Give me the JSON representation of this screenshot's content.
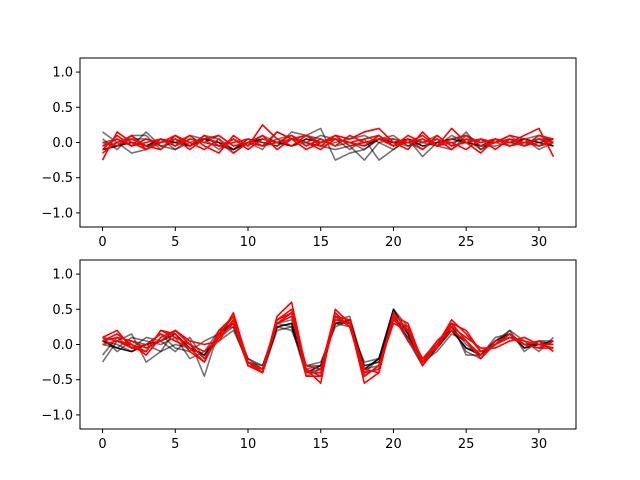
{
  "chart_data": [
    {
      "type": "line",
      "xlim": [
        -1.55,
        32.55
      ],
      "ylim": [
        -1.2,
        1.2
      ],
      "xticks": [
        0,
        5,
        10,
        15,
        20,
        25,
        30
      ],
      "yticks": [
        1.0,
        0.5,
        0.0,
        -0.5,
        -1.0
      ],
      "xtick_labels": [
        "0",
        "5",
        "10",
        "15",
        "20",
        "25",
        "30"
      ],
      "ytick_labels": [
        "1.0",
        "0.5",
        "0.0",
        "−0.5",
        "−1.0"
      ],
      "grid": false,
      "series": [
        {
          "color": "#000000",
          "opacity": 0.55,
          "values": [
            0.15,
            0.0,
            -0.15,
            -0.1,
            0.05,
            -0.1,
            0.0,
            0.05,
            0.0,
            -0.15,
            0.0,
            -0.05,
            0.05,
            0.1,
            0.0,
            -0.05,
            -0.1,
            -0.05,
            -0.25,
            0.0,
            0.05,
            0.0,
            -0.1,
            0.05,
            0.0,
            0.05,
            -0.1,
            0.0,
            -0.05,
            0.05,
            0.1,
            0.0
          ]
        },
        {
          "color": "#000000",
          "opacity": 0.55,
          "values": [
            0.05,
            -0.1,
            0.1,
            0.1,
            -0.1,
            0.05,
            -0.05,
            0.1,
            -0.05,
            -0.1,
            0.05,
            0.0,
            -0.05,
            0.05,
            0.1,
            0.2,
            -0.25,
            -0.15,
            -0.1,
            0.05,
            0.0,
            -0.05,
            0.05,
            -0.05,
            -0.1,
            0.1,
            0.0,
            0.05,
            0.0,
            -0.05,
            0.05,
            0.05
          ]
        },
        {
          "color": "#000000",
          "opacity": 0.55,
          "values": [
            -0.1,
            -0.05,
            0.05,
            0.05,
            -0.05,
            0.0,
            0.1,
            0.05,
            -0.1,
            0.05,
            -0.05,
            0.1,
            0.0,
            -0.05,
            0.0,
            0.1,
            0.05,
            -0.1,
            0.05,
            -0.25,
            -0.1,
            0.05,
            -0.2,
            0.0,
            0.05,
            0.1,
            -0.05,
            -0.05,
            0.0,
            0.05,
            -0.1,
            0.0
          ]
        },
        {
          "color": "#000000",
          "opacity": 0.55,
          "values": [
            0.0,
            0.05,
            -0.05,
            0.15,
            -0.05,
            -0.1,
            0.05,
            0.0,
            0.1,
            -0.05,
            0.0,
            -0.1,
            0.15,
            0.05,
            0.0,
            -0.05,
            0.0,
            0.05,
            0.1,
            0.0,
            -0.1,
            0.05,
            0.0,
            0.1,
            -0.05,
            0.15,
            -0.1,
            0.05,
            -0.05,
            0.0,
            0.05,
            -0.05
          ]
        },
        {
          "color": "#000000",
          "opacity": 0.55,
          "values": [
            -0.05,
            0.0,
            0.1,
            -0.05,
            0.0,
            0.05,
            -0.05,
            0.1,
            0.05,
            -0.1,
            0.05,
            0.0,
            -0.05,
            0.15,
            0.1,
            0.05,
            -0.05,
            0.0,
            -0.1,
            0.05,
            0.1,
            -0.05,
            0.0,
            -0.05,
            0.1,
            0.0,
            0.05,
            0.0,
            0.1,
            -0.05,
            0.0,
            0.05
          ]
        },
        {
          "color": "#000000",
          "opacity": 0.9,
          "values": [
            -0.1,
            -0.05,
            0.0,
            -0.05,
            0.05,
            0.0,
            -0.05,
            0.05,
            0.0,
            -0.1,
            0.0,
            0.05,
            0.0,
            -0.05,
            0.05,
            0.0,
            0.05,
            0.0,
            -0.05,
            0.05,
            0.0,
            0.05,
            -0.05,
            0.0,
            0.05,
            0.0,
            -0.05,
            0.05,
            0.0,
            0.05,
            0.0,
            -0.05
          ]
        },
        {
          "color": "#ff0000",
          "opacity": 1.0,
          "values": [
            -0.25,
            0.15,
            0.0,
            -0.1,
            0.05,
            -0.05,
            0.1,
            -0.05,
            -0.15,
            0.1,
            -0.05,
            0.25,
            0.05,
            -0.05,
            0.1,
            -0.05,
            0.1,
            0.05,
            0.15,
            0.2,
            0.0,
            -0.1,
            0.15,
            -0.05,
            0.2,
            0.0,
            -0.15,
            0.05,
            0.0,
            0.1,
            0.2,
            -0.2
          ]
        },
        {
          "color": "#ff0000",
          "opacity": 1.0,
          "values": [
            -0.15,
            0.0,
            0.05,
            -0.05,
            -0.1,
            0.1,
            0.0,
            -0.1,
            0.05,
            -0.15,
            0.0,
            -0.05,
            0.15,
            0.05,
            -0.1,
            0.0,
            0.1,
            -0.05,
            0.0,
            0.05,
            -0.05,
            0.05,
            -0.1,
            0.1,
            -0.05,
            0.0,
            0.05,
            -0.1,
            0.05,
            0.0,
            -0.05,
            0.05
          ]
        },
        {
          "color": "#ff0000",
          "opacity": 1.0,
          "values": [
            -0.05,
            0.05,
            -0.05,
            0.0,
            0.05,
            -0.05,
            0.05,
            0.0,
            -0.05,
            0.05,
            -0.1,
            0.05,
            0.0,
            0.1,
            -0.05,
            0.05,
            -0.05,
            0.1,
            0.0,
            0.05,
            0.05,
            0.0,
            0.05,
            -0.05,
            0.0,
            -0.1,
            0.05,
            0.0,
            0.1,
            0.05,
            -0.05,
            0.0
          ]
        },
        {
          "color": "#ff0000",
          "opacity": 1.0,
          "values": [
            0.0,
            -0.05,
            0.1,
            -0.1,
            0.0,
            0.05,
            -0.1,
            0.05,
            0.1,
            -0.05,
            0.0,
            0.1,
            -0.1,
            0.05,
            0.0,
            -0.1,
            0.05,
            0.0,
            -0.05,
            0.1,
            -0.05,
            0.1,
            0.0,
            0.05,
            -0.1,
            0.05,
            0.0,
            0.05,
            -0.05,
            0.0,
            0.05,
            0.0
          ]
        },
        {
          "color": "#ff0000",
          "opacity": 1.0,
          "values": [
            -0.1,
            0.1,
            -0.05,
            0.05,
            0.0,
            0.1,
            -0.05,
            0.1,
            -0.05,
            0.0,
            0.05,
            -0.05,
            0.0,
            0.05,
            0.1,
            0.0,
            0.05,
            0.0,
            0.05,
            0.1,
            -0.05,
            0.0,
            0.1,
            -0.05,
            0.05,
            0.1,
            -0.05,
            0.0,
            0.05,
            -0.05,
            0.1,
            0.05
          ]
        }
      ]
    },
    {
      "type": "line",
      "xlim": [
        -1.55,
        32.55
      ],
      "ylim": [
        -1.2,
        1.2
      ],
      "xticks": [
        0,
        5,
        10,
        15,
        20,
        25,
        30
      ],
      "yticks": [
        1.0,
        0.5,
        0.0,
        -0.5,
        -1.0
      ],
      "xtick_labels": [
        "0",
        "5",
        "10",
        "15",
        "20",
        "25",
        "30"
      ],
      "ytick_labels": [
        "1.0",
        "0.5",
        "0.0",
        "−0.5",
        "−1.0"
      ],
      "grid": false,
      "series": [
        {
          "color": "#000000",
          "opacity": 0.55,
          "values": [
            -0.25,
            0.05,
            0.15,
            -0.25,
            -0.1,
            0.2,
            0.05,
            -0.45,
            0.2,
            0.25,
            -0.3,
            -0.4,
            0.2,
            0.25,
            -0.45,
            -0.35,
            0.35,
            0.3,
            -0.4,
            -0.2,
            0.4,
            0.1,
            -0.3,
            -0.05,
            0.25,
            -0.1,
            -0.2,
            0.0,
            0.2,
            -0.1,
            0.05,
            0.0
          ]
        },
        {
          "color": "#000000",
          "opacity": 0.55,
          "values": [
            0.1,
            -0.1,
            0.05,
            0.0,
            0.15,
            -0.05,
            -0.1,
            0.05,
            0.15,
            0.35,
            -0.2,
            -0.35,
            0.3,
            0.35,
            -0.3,
            -0.3,
            0.35,
            0.4,
            -0.35,
            -0.3,
            0.5,
            0.25,
            -0.25,
            0.0,
            0.3,
            -0.15,
            -0.15,
            0.05,
            0.2,
            0.05,
            -0.1,
            0.1
          ]
        },
        {
          "color": "#000000",
          "opacity": 0.55,
          "values": [
            0.0,
            -0.05,
            0.1,
            0.05,
            0.0,
            0.1,
            -0.2,
            -0.1,
            0.2,
            0.3,
            -0.25,
            -0.35,
            0.25,
            0.3,
            -0.4,
            -0.35,
            0.3,
            0.3,
            -0.3,
            -0.25,
            0.45,
            0.05,
            -0.3,
            0.0,
            0.25,
            0.0,
            -0.15,
            0.1,
            0.15,
            -0.05,
            0.05,
            0.05
          ]
        },
        {
          "color": "#000000",
          "opacity": 0.55,
          "values": [
            0.05,
            0.0,
            -0.1,
            0.0,
            -0.1,
            0.0,
            -0.05,
            -0.15,
            0.05,
            0.2,
            -0.25,
            -0.3,
            0.3,
            0.25,
            -0.35,
            -0.3,
            0.3,
            0.25,
            -0.25,
            -0.2,
            0.35,
            0.1,
            -0.2,
            0.05,
            0.2,
            -0.05,
            -0.1,
            0.0,
            0.1,
            0.0,
            -0.05,
            0.05
          ]
        },
        {
          "color": "#000000",
          "opacity": 0.55,
          "values": [
            -0.15,
            0.1,
            -0.05,
            0.1,
            0.05,
            -0.1,
            0.1,
            -0.2,
            0.1,
            0.25,
            -0.2,
            -0.3,
            0.25,
            0.2,
            -0.3,
            -0.25,
            0.25,
            0.35,
            -0.3,
            -0.25,
            0.4,
            0.15,
            -0.25,
            -0.1,
            0.15,
            0.05,
            -0.2,
            0.05,
            0.15,
            0.0,
            0.0,
            -0.05
          ]
        },
        {
          "color": "#000000",
          "opacity": 0.9,
          "values": [
            0.05,
            -0.05,
            -0.1,
            0.0,
            0.05,
            0.15,
            -0.05,
            -0.15,
            0.15,
            0.3,
            -0.25,
            -0.4,
            0.25,
            0.3,
            -0.4,
            -0.3,
            0.3,
            0.35,
            -0.35,
            -0.2,
            0.5,
            0.15,
            -0.25,
            -0.05,
            0.2,
            -0.05,
            -0.15,
            0.05,
            0.15,
            -0.05,
            0.0,
            0.05
          ]
        },
        {
          "color": "#ff0000",
          "opacity": 1.0,
          "values": [
            0.1,
            0.2,
            -0.05,
            -0.1,
            0.2,
            0.15,
            -0.1,
            -0.25,
            0.2,
            0.4,
            -0.3,
            -0.4,
            0.4,
            0.6,
            -0.35,
            -0.55,
            0.5,
            0.3,
            -0.55,
            -0.4,
            0.4,
            0.3,
            -0.25,
            0.0,
            0.35,
            0.15,
            -0.1,
            0.0,
            0.1,
            0.05,
            0.0,
            -0.05
          ]
        },
        {
          "color": "#ff0000",
          "opacity": 1.0,
          "values": [
            0.0,
            0.05,
            0.0,
            -0.15,
            0.1,
            0.2,
            0.0,
            -0.2,
            0.1,
            0.45,
            -0.25,
            -0.4,
            0.3,
            0.45,
            -0.45,
            -0.45,
            0.4,
            0.25,
            -0.45,
            -0.3,
            0.3,
            0.2,
            -0.2,
            -0.05,
            0.3,
            0.05,
            -0.2,
            0.05,
            0.1,
            0.0,
            0.05,
            -0.1
          ]
        },
        {
          "color": "#ff0000",
          "opacity": 1.0,
          "values": [
            0.05,
            0.1,
            0.05,
            -0.05,
            0.05,
            0.2,
            0.05,
            0.0,
            0.05,
            0.35,
            -0.25,
            -0.35,
            0.35,
            0.45,
            -0.3,
            -0.35,
            0.45,
            0.25,
            -0.4,
            -0.35,
            0.35,
            0.25,
            -0.25,
            0.05,
            0.25,
            0.1,
            -0.05,
            -0.05,
            0.05,
            0.1,
            0.0,
            0.0
          ]
        },
        {
          "color": "#ff0000",
          "opacity": 1.0,
          "values": [
            0.1,
            0.05,
            -0.05,
            0.0,
            0.15,
            0.05,
            -0.05,
            -0.25,
            0.15,
            0.4,
            -0.25,
            -0.4,
            0.35,
            0.5,
            -0.4,
            -0.4,
            0.4,
            0.35,
            -0.45,
            -0.3,
            0.4,
            0.05,
            -0.2,
            0.0,
            0.2,
            0.05,
            -0.15,
            0.0,
            0.15,
            0.0,
            -0.05,
            0.05
          ]
        },
        {
          "color": "#ff0000",
          "opacity": 1.0,
          "values": [
            0.05,
            0.15,
            0.0,
            -0.1,
            0.2,
            0.1,
            0.0,
            -0.1,
            0.1,
            0.3,
            -0.3,
            -0.35,
            0.3,
            0.4,
            -0.35,
            -0.45,
            0.35,
            0.3,
            -0.35,
            -0.4,
            0.45,
            0.2,
            -0.3,
            0.0,
            0.3,
            0.2,
            -0.1,
            0.0,
            0.15,
            0.0,
            -0.05,
            -0.05
          ]
        }
      ]
    }
  ]
}
